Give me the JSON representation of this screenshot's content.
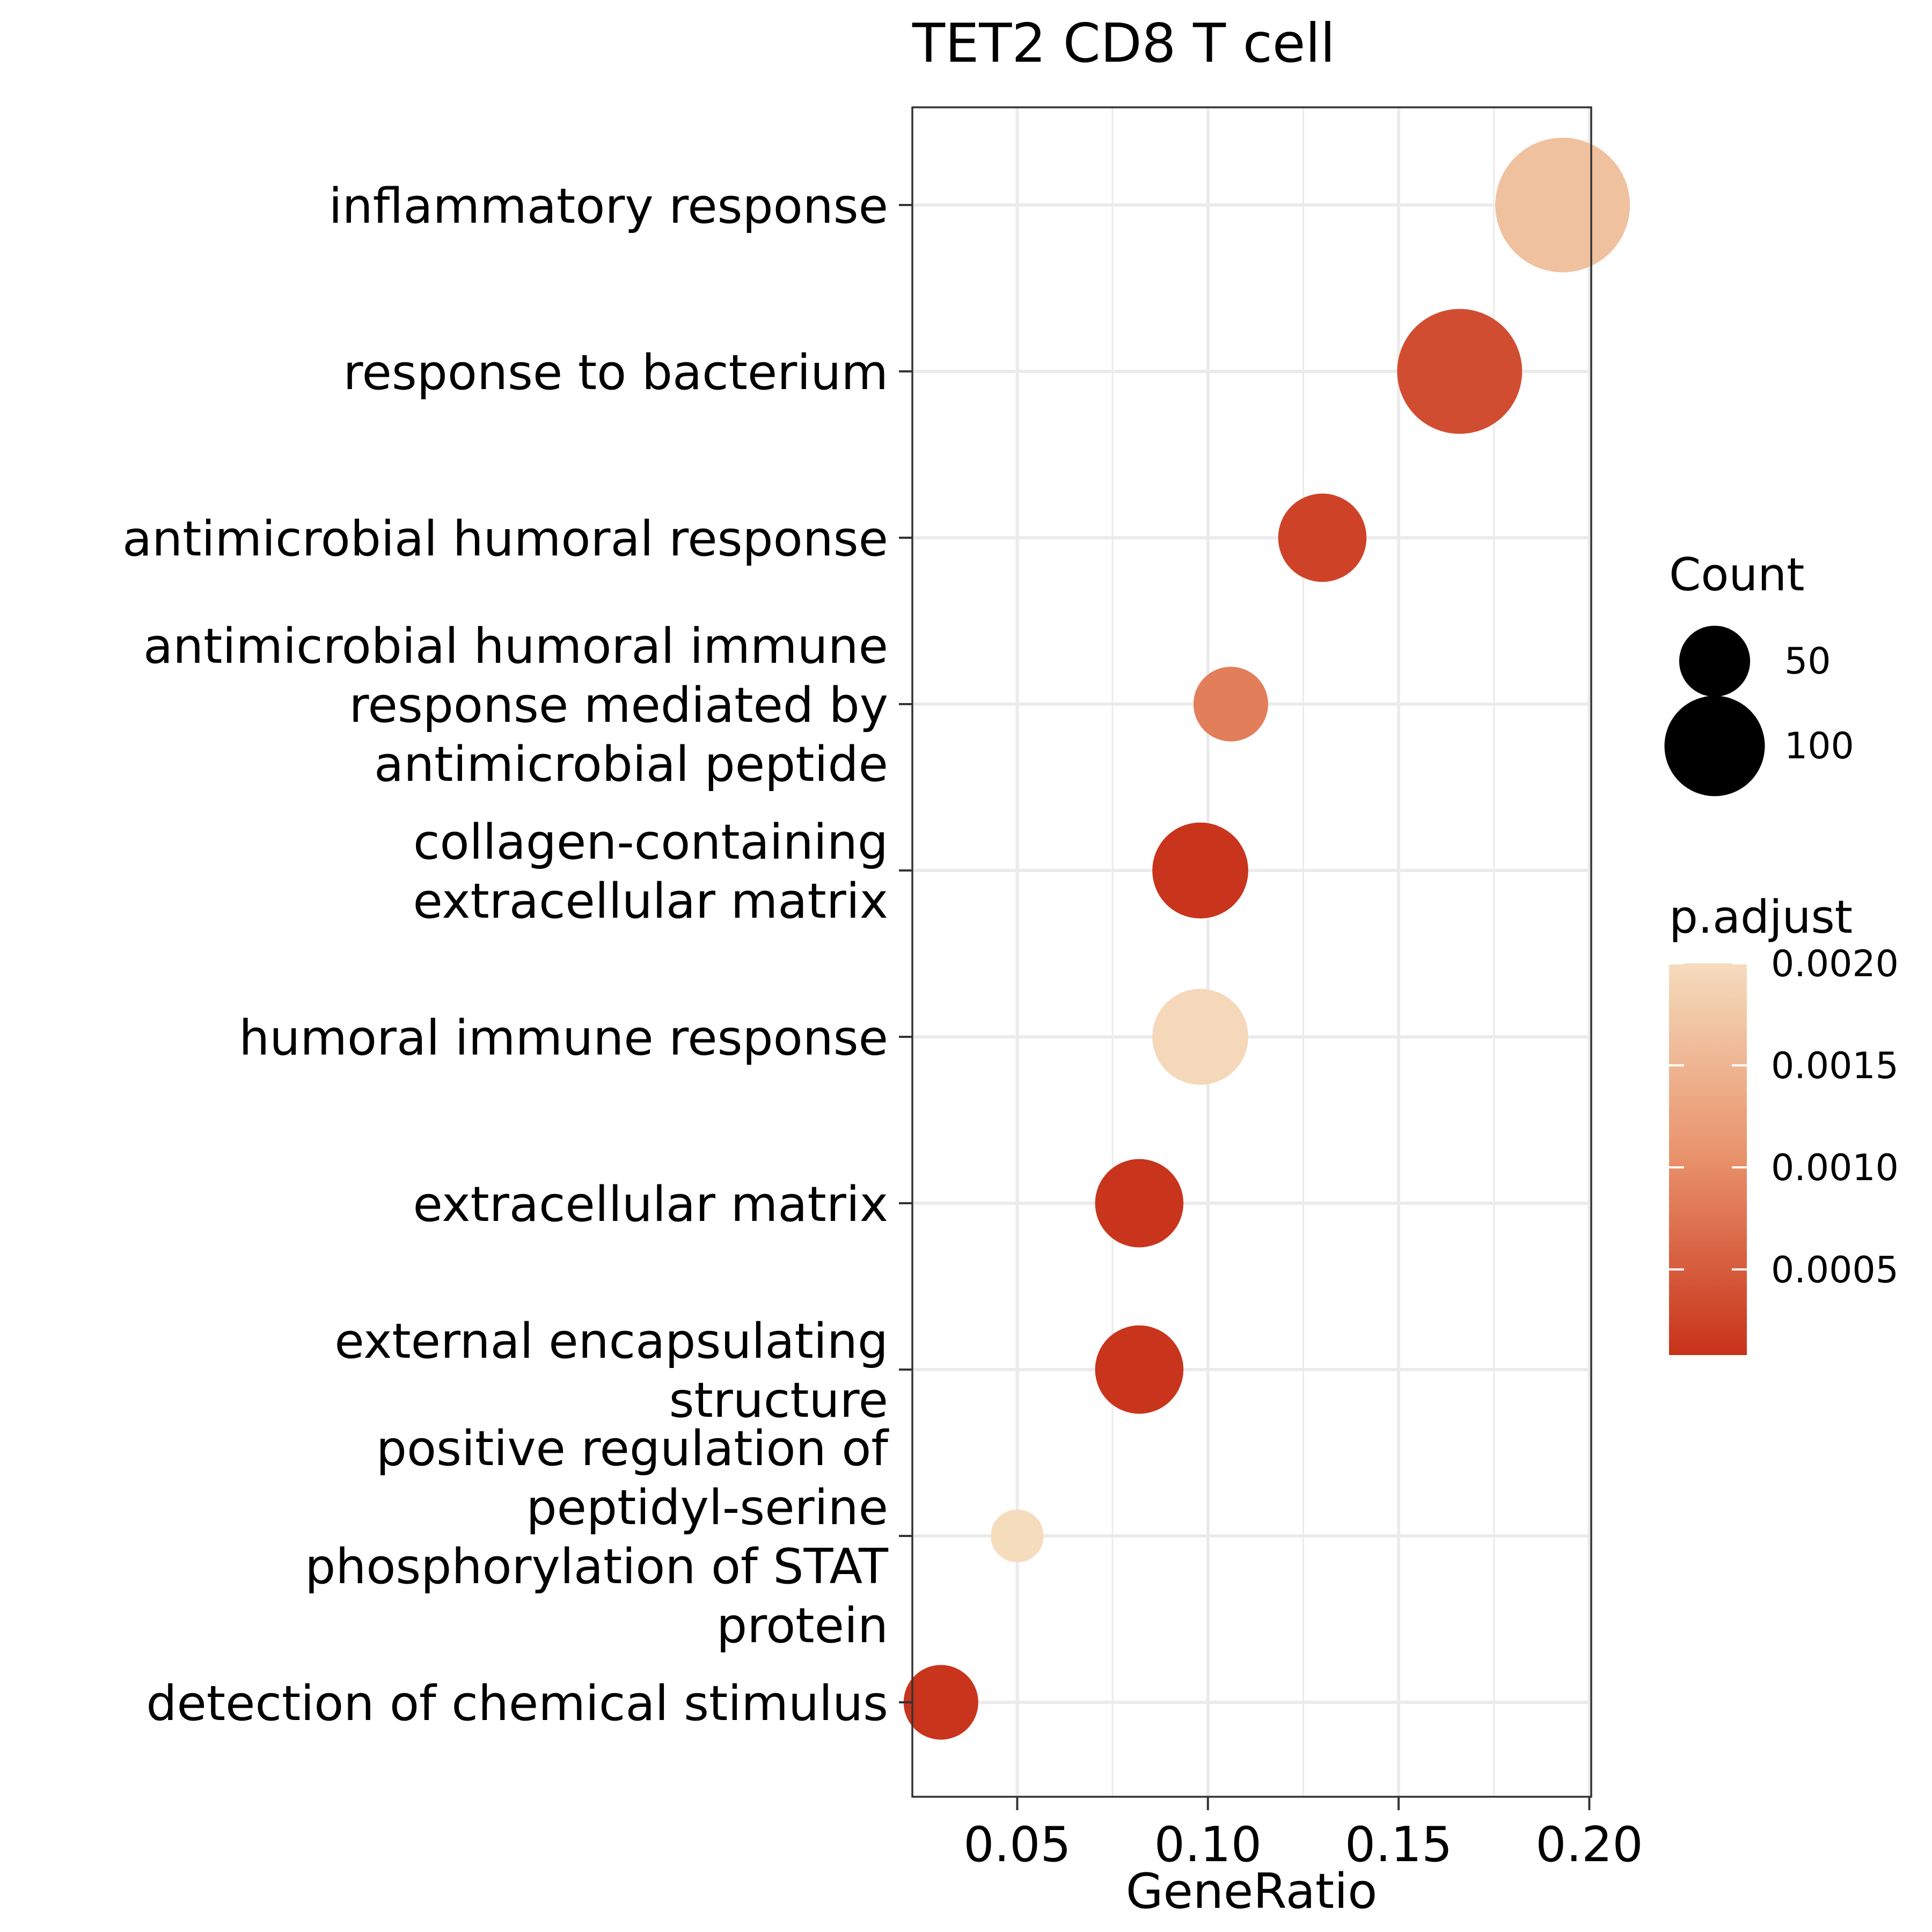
{
  "chart_data": {
    "type": "scatter",
    "title": "TET2 CD8 T cell",
    "xlabel": "GeneRatio",
    "ylabel": "",
    "xlim": [
      0.0225,
      0.2005
    ],
    "xticks": [
      0.05,
      0.1,
      0.15,
      0.2
    ],
    "xtick_labels": [
      "0.05",
      "0.10",
      "0.15",
      "0.20"
    ],
    "grid": true,
    "legend_position": "right",
    "categories": [
      [
        "inflammatory response"
      ],
      [
        "response to bacterium"
      ],
      [
        "antimicrobial humoral response"
      ],
      [
        "antimicrobial humoral immune",
        "response mediated by",
        "antimicrobial peptide"
      ],
      [
        "collagen-containing",
        "extracellular matrix"
      ],
      [
        "humoral immune response"
      ],
      [
        "extracellular matrix"
      ],
      [
        "external encapsulating",
        "structure"
      ],
      [
        "positive regulation of",
        "peptidyl-serine",
        "phosphorylation of STAT",
        "protein"
      ],
      [
        "detection of chemical stimulus"
      ]
    ],
    "points": [
      {
        "gene_ratio": 0.193,
        "count": 130,
        "p_adjust": 0.00165
      },
      {
        "gene_ratio": 0.166,
        "count": 112,
        "p_adjust": 0.00035
      },
      {
        "gene_ratio": 0.13,
        "count": 56,
        "p_adjust": 0.00025
      },
      {
        "gene_ratio": 0.106,
        "count": 40,
        "p_adjust": 0.00085
      },
      {
        "gene_ratio": 0.098,
        "count": 66,
        "p_adjust": 0.0001
      },
      {
        "gene_ratio": 0.098,
        "count": 66,
        "p_adjust": 0.00195
      },
      {
        "gene_ratio": 0.082,
        "count": 56,
        "p_adjust": 0.0001
      },
      {
        "gene_ratio": 0.082,
        "count": 56,
        "p_adjust": 0.0001
      },
      {
        "gene_ratio": 0.05,
        "count": 20,
        "p_adjust": 0.002
      },
      {
        "gene_ratio": 0.03,
        "count": 40,
        "p_adjust": 0.0001
      }
    ],
    "size_legend": {
      "title": "Count",
      "entries": [
        {
          "label": "50",
          "value": 50
        },
        {
          "label": "100",
          "value": 100
        }
      ]
    },
    "color_legend": {
      "title": "p.adjust",
      "range": [
        8e-05,
        0.002
      ],
      "ticks": [
        {
          "label": "0.0020",
          "value": 0.002
        },
        {
          "label": "0.0015",
          "value": 0.0015
        },
        {
          "label": "0.0010",
          "value": 0.001
        },
        {
          "label": "0.0005",
          "value": 0.0005
        }
      ],
      "color_low": "#c8321a",
      "color_mid": "#e8916a",
      "color_high": "#f5dcbd"
    }
  }
}
